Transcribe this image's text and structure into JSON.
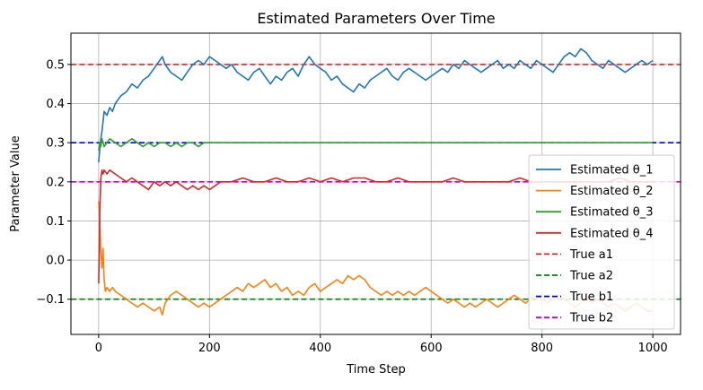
{
  "chart_data": {
    "type": "line",
    "title": "Estimated Parameters Over Time",
    "xlabel": "Time Step",
    "ylabel": "Parameter Value",
    "xlim": [
      -50,
      1050
    ],
    "ylim": [
      -0.19,
      0.58
    ],
    "xticks": [
      0,
      200,
      400,
      600,
      800,
      1000
    ],
    "yticks": [
      -0.1,
      0.0,
      0.1,
      0.2,
      0.3,
      0.4,
      0.5
    ],
    "ytick_labels": [
      "−0.1",
      "0.0",
      "0.1",
      "0.2",
      "0.3",
      "0.4",
      "0.5"
    ],
    "grid": true,
    "legend_position": "center-right",
    "series": [
      {
        "name": "Estimated θ_1",
        "color": "#1f77b4",
        "style": "solid",
        "x": [
          0,
          3,
          6,
          10,
          15,
          20,
          25,
          30,
          40,
          50,
          60,
          70,
          80,
          90,
          100,
          110,
          115,
          120,
          130,
          140,
          150,
          160,
          170,
          180,
          190,
          200,
          210,
          220,
          230,
          240,
          250,
          260,
          270,
          280,
          290,
          300,
          310,
          320,
          330,
          340,
          350,
          360,
          370,
          380,
          390,
          400,
          410,
          420,
          430,
          440,
          450,
          460,
          470,
          480,
          490,
          500,
          510,
          520,
          530,
          540,
          550,
          560,
          570,
          580,
          590,
          600,
          610,
          620,
          630,
          640,
          650,
          660,
          670,
          680,
          690,
          700,
          710,
          720,
          730,
          740,
          750,
          760,
          770,
          780,
          790,
          800,
          810,
          820,
          830,
          840,
          850,
          860,
          870,
          880,
          890,
          900,
          910,
          920,
          930,
          940,
          950,
          960,
          970,
          980,
          990,
          1000
        ],
        "y": [
          0.25,
          0.3,
          0.33,
          0.38,
          0.37,
          0.39,
          0.38,
          0.4,
          0.42,
          0.43,
          0.45,
          0.44,
          0.46,
          0.47,
          0.49,
          0.51,
          0.52,
          0.5,
          0.48,
          0.47,
          0.46,
          0.48,
          0.5,
          0.51,
          0.5,
          0.52,
          0.51,
          0.5,
          0.49,
          0.5,
          0.48,
          0.47,
          0.46,
          0.48,
          0.49,
          0.47,
          0.45,
          0.47,
          0.46,
          0.48,
          0.49,
          0.47,
          0.5,
          0.52,
          0.5,
          0.49,
          0.48,
          0.46,
          0.47,
          0.45,
          0.44,
          0.43,
          0.45,
          0.44,
          0.46,
          0.47,
          0.48,
          0.49,
          0.47,
          0.46,
          0.48,
          0.49,
          0.48,
          0.47,
          0.46,
          0.47,
          0.48,
          0.49,
          0.48,
          0.5,
          0.49,
          0.51,
          0.5,
          0.49,
          0.48,
          0.49,
          0.5,
          0.51,
          0.49,
          0.5,
          0.49,
          0.51,
          0.5,
          0.49,
          0.51,
          0.5,
          0.49,
          0.48,
          0.5,
          0.52,
          0.53,
          0.52,
          0.54,
          0.53,
          0.51,
          0.5,
          0.49,
          0.51,
          0.5,
          0.49,
          0.48,
          0.49,
          0.5,
          0.51,
          0.5,
          0.51
        ]
      },
      {
        "name": "Estimated θ_2",
        "color": "#ff7f0e",
        "style": "solid",
        "x": [
          0,
          2,
          4,
          6,
          8,
          10,
          12,
          15,
          20,
          25,
          30,
          40,
          50,
          60,
          70,
          80,
          90,
          100,
          110,
          115,
          120,
          130,
          140,
          150,
          160,
          170,
          180,
          190,
          200,
          210,
          220,
          230,
          240,
          250,
          260,
          270,
          280,
          290,
          300,
          310,
          320,
          330,
          340,
          350,
          360,
          370,
          380,
          390,
          400,
          410,
          420,
          430,
          440,
          450,
          460,
          470,
          480,
          490,
          500,
          510,
          520,
          530,
          540,
          550,
          560,
          570,
          580,
          590,
          600,
          610,
          620,
          630,
          640,
          650,
          660,
          670,
          680,
          690,
          700,
          710,
          720,
          730,
          740,
          750,
          760,
          770,
          780,
          790,
          800,
          810,
          820,
          830,
          840,
          850,
          860,
          870,
          880,
          890,
          900,
          910,
          920,
          930,
          940,
          950,
          960,
          970,
          980,
          990,
          1000
        ],
        "y": [
          0.15,
          0.1,
          0.02,
          -0.02,
          0.03,
          -0.05,
          -0.08,
          -0.07,
          -0.08,
          -0.07,
          -0.08,
          -0.09,
          -0.1,
          -0.11,
          -0.12,
          -0.11,
          -0.12,
          -0.13,
          -0.12,
          -0.14,
          -0.11,
          -0.09,
          -0.08,
          -0.09,
          -0.1,
          -0.11,
          -0.12,
          -0.11,
          -0.12,
          -0.11,
          -0.1,
          -0.09,
          -0.08,
          -0.07,
          -0.08,
          -0.06,
          -0.07,
          -0.06,
          -0.05,
          -0.07,
          -0.06,
          -0.08,
          -0.07,
          -0.09,
          -0.08,
          -0.09,
          -0.07,
          -0.06,
          -0.08,
          -0.07,
          -0.06,
          -0.05,
          -0.06,
          -0.04,
          -0.05,
          -0.04,
          -0.05,
          -0.07,
          -0.08,
          -0.09,
          -0.08,
          -0.09,
          -0.08,
          -0.09,
          -0.08,
          -0.09,
          -0.08,
          -0.07,
          -0.08,
          -0.09,
          -0.1,
          -0.11,
          -0.1,
          -0.11,
          -0.12,
          -0.11,
          -0.12,
          -0.11,
          -0.1,
          -0.11,
          -0.12,
          -0.11,
          -0.1,
          -0.09,
          -0.1,
          -0.11,
          -0.1,
          -0.09,
          -0.1,
          -0.11,
          -0.1,
          -0.09,
          -0.1,
          -0.11,
          -0.12,
          -0.11,
          -0.1,
          -0.11,
          -0.1,
          -0.11,
          -0.12,
          -0.11,
          -0.12,
          -0.13,
          -0.12,
          -0.11,
          -0.12,
          -0.13,
          -0.13
        ]
      },
      {
        "name": "Estimated θ_3",
        "color": "#2ca02c",
        "style": "solid",
        "x": [
          0,
          2,
          4,
          6,
          8,
          10,
          15,
          20,
          30,
          40,
          50,
          60,
          70,
          80,
          90,
          100,
          110,
          120,
          130,
          140,
          150,
          160,
          170,
          180,
          190,
          200,
          220,
          240,
          260,
          280,
          300,
          320,
          340,
          360,
          380,
          400,
          420,
          440,
          460,
          480,
          500,
          520,
          540,
          560,
          580,
          600,
          620,
          640,
          660,
          680,
          700,
          720,
          740,
          760,
          780,
          800,
          820,
          840,
          860,
          880,
          900,
          920,
          940,
          960,
          980,
          1000
        ],
        "y": [
          0.28,
          0.3,
          0.29,
          0.31,
          0.3,
          0.29,
          0.3,
          0.31,
          0.3,
          0.29,
          0.3,
          0.31,
          0.3,
          0.29,
          0.3,
          0.29,
          0.3,
          0.3,
          0.29,
          0.3,
          0.29,
          0.3,
          0.3,
          0.29,
          0.3,
          0.3,
          0.3,
          0.3,
          0.3,
          0.3,
          0.3,
          0.3,
          0.3,
          0.3,
          0.3,
          0.3,
          0.3,
          0.3,
          0.3,
          0.3,
          0.3,
          0.3,
          0.3,
          0.3,
          0.3,
          0.3,
          0.3,
          0.3,
          0.3,
          0.3,
          0.3,
          0.3,
          0.3,
          0.3,
          0.3,
          0.3,
          0.3,
          0.3,
          0.3,
          0.3,
          0.3,
          0.3,
          0.3,
          0.3,
          0.3,
          0.3
        ]
      },
      {
        "name": "Estimated θ_4",
        "color": "#d62728",
        "style": "solid",
        "x": [
          0,
          2,
          4,
          6,
          8,
          10,
          15,
          20,
          30,
          40,
          50,
          60,
          70,
          80,
          90,
          100,
          110,
          120,
          130,
          140,
          150,
          160,
          170,
          180,
          190,
          200,
          210,
          220,
          240,
          260,
          280,
          300,
          320,
          340,
          360,
          380,
          400,
          420,
          440,
          460,
          480,
          500,
          520,
          540,
          560,
          580,
          600,
          620,
          640,
          660,
          680,
          700,
          720,
          740,
          760,
          780,
          800,
          820,
          840,
          860,
          880,
          900,
          920,
          940,
          960,
          980,
          1000
        ],
        "y": [
          -0.06,
          0.12,
          0.21,
          0.23,
          0.22,
          0.23,
          0.22,
          0.23,
          0.22,
          0.21,
          0.2,
          0.21,
          0.2,
          0.19,
          0.18,
          0.2,
          0.19,
          0.2,
          0.19,
          0.2,
          0.19,
          0.18,
          0.19,
          0.18,
          0.19,
          0.18,
          0.19,
          0.2,
          0.2,
          0.21,
          0.2,
          0.2,
          0.21,
          0.2,
          0.2,
          0.21,
          0.2,
          0.21,
          0.2,
          0.21,
          0.21,
          0.2,
          0.2,
          0.21,
          0.2,
          0.2,
          0.2,
          0.2,
          0.21,
          0.2,
          0.2,
          0.2,
          0.2,
          0.2,
          0.21,
          0.2,
          0.2,
          0.2,
          0.2,
          0.2,
          0.2,
          0.2,
          0.2,
          0.21,
          0.2,
          0.2,
          0.2
        ]
      },
      {
        "name": "True a1",
        "color": "#d62728",
        "style": "dashed",
        "value": 0.5
      },
      {
        "name": "True a2",
        "color": "#008000",
        "style": "dashed",
        "value": -0.1
      },
      {
        "name": "True b1",
        "color": "#0000cc",
        "style": "dashed",
        "value": 0.3
      },
      {
        "name": "True b2",
        "color": "#c000c0",
        "style": "dashed",
        "value": 0.2
      }
    ]
  }
}
